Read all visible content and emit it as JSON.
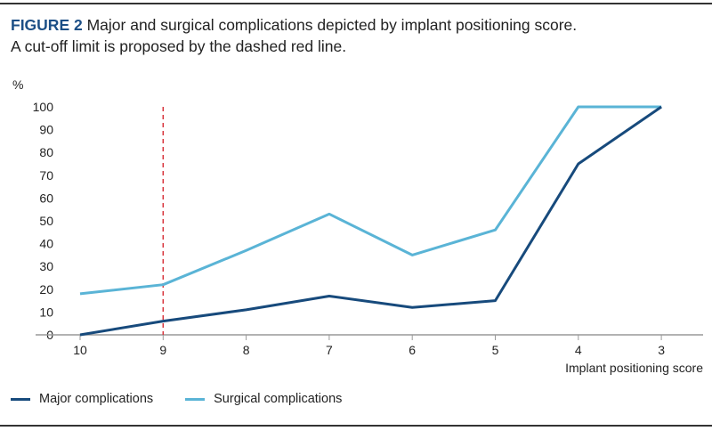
{
  "figure": {
    "label": "FIGURE 2",
    "caption_line1": "Major and surgical complications depicted by implant positioning score.",
    "caption_line2": "A cut-off limit is proposed by the dashed red line."
  },
  "chart_data": {
    "type": "line",
    "title": "Major and surgical complications depicted by implant positioning score",
    "xlabel": "Implant positioning score",
    "ylabel": "%",
    "x": [
      "10",
      "9",
      "8",
      "7",
      "6",
      "5",
      "4",
      "3"
    ],
    "ylim": [
      0,
      100
    ],
    "yticks": [
      "0",
      "10",
      "20",
      "30",
      "40",
      "50",
      "60",
      "70",
      "80",
      "90",
      "100"
    ],
    "series": [
      {
        "name": "Major complications",
        "color": "#174a7c",
        "values": [
          0,
          6,
          11,
          17,
          12,
          15,
          75,
          100
        ]
      },
      {
        "name": "Surgical complications",
        "color": "#5ab4d6",
        "values": [
          18,
          22,
          37,
          53,
          35,
          46,
          100,
          100
        ]
      }
    ],
    "cutoff": {
      "x": "9",
      "color": "#d8343c",
      "style": "dashed"
    },
    "grid": false,
    "legend_placement": "bottom-left"
  }
}
